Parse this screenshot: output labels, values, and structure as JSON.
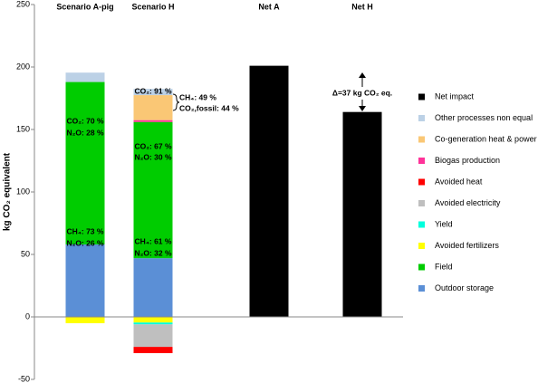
{
  "chart_data": {
    "type": "stacked_bar",
    "y_label": "kg CO₂ equivalent",
    "categories": [
      "Scenario A-pig",
      "Scenario H",
      "Net A",
      "Net H"
    ],
    "series": [
      {
        "name": "Outdoor storage",
        "color": "#5b8fd6",
        "values": [
          58,
          47,
          null,
          null
        ]
      },
      {
        "name": "Field",
        "color": "#00cc00",
        "values": [
          130,
          109,
          null,
          null
        ]
      },
      {
        "name": "Avoided fertilizers",
        "color": "#ffff00",
        "values": [
          -5,
          -4.5,
          null,
          null
        ]
      },
      {
        "name": "Yield",
        "color": "#00ffdd",
        "values": [
          null,
          -1.5,
          null,
          null
        ]
      },
      {
        "name": "Avoided electricity",
        "color": "#bfbfbf",
        "values": [
          null,
          -18,
          null,
          null
        ]
      },
      {
        "name": "Avoided heat",
        "color": "#ff0000",
        "values": [
          null,
          -5,
          null,
          null
        ]
      },
      {
        "name": "Biogas production",
        "color": "#ff3399",
        "values": [
          null,
          1.5,
          null,
          null
        ]
      },
      {
        "name": "Co-generation heat & power",
        "color": "#fac775",
        "values": [
          null,
          20,
          null,
          null
        ]
      },
      {
        "name": "Other processes non equal",
        "color": "#bcd1e6",
        "values": [
          7.5,
          5,
          null,
          null
        ]
      },
      {
        "name": "Net impact",
        "color": "#000000",
        "values": [
          null,
          null,
          201,
          164
        ]
      }
    ],
    "ylim": [
      -50,
      250
    ],
    "yticks": [
      -50,
      0,
      50,
      100,
      150,
      200,
      250
    ],
    "grid": false,
    "legend": "right",
    "annotations": [
      "CO₂: 70 %",
      "N₂O: 28 %",
      "CH₄: 73 %",
      "N₂O: 26 %",
      "CO₂: 91 %",
      "CH₄: 49 %",
      "CO₂,fossil: 44 %",
      "CO₂: 67 %",
      "N₂O: 30 %",
      "CH₄: 61 %",
      "N₂O: 32 %",
      "Δ=37 kg CO₂ eq."
    ]
  }
}
